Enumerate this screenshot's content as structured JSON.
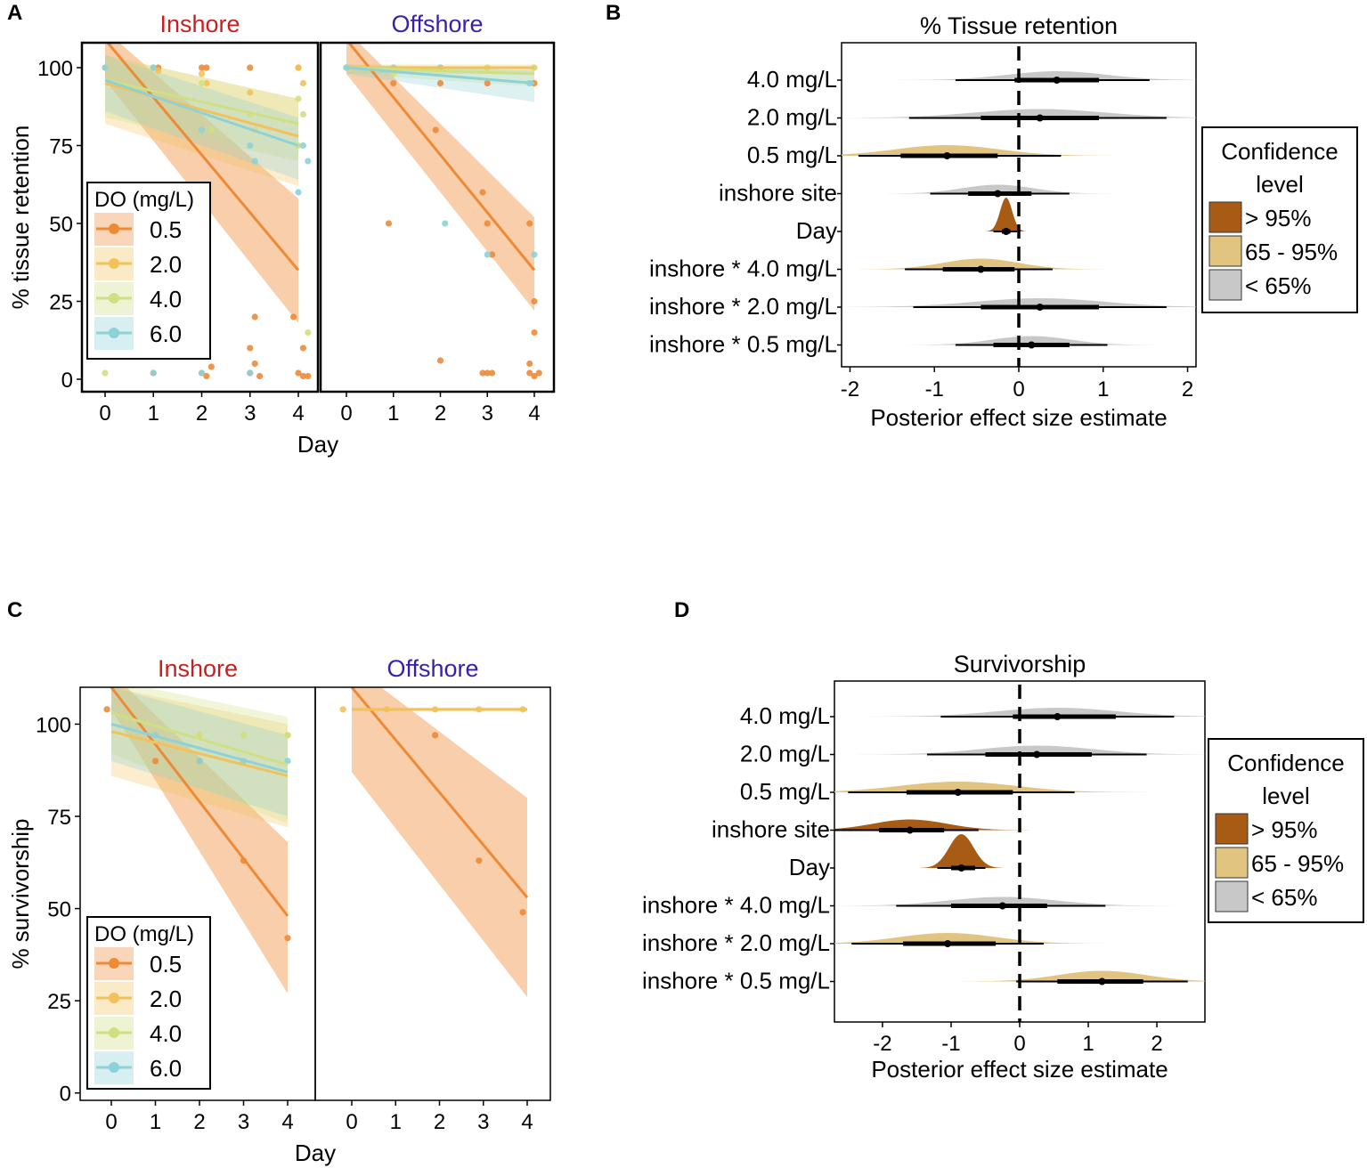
{
  "figure": {
    "panel_labels": [
      "A",
      "B",
      "C",
      "D"
    ],
    "colors": {
      "0.5": "#ee8a36",
      "2.0": "#f2c25a",
      "4.0": "#cfe082",
      "6.0": "#8ed2d8",
      "inshore": "#cc1e1e",
      "offshore": "#3a1fae",
      "conf_high": "#a85b14",
      "conf_mid": "#e2c481",
      "conf_low": "#c8c8c8"
    }
  },
  "chart_data": [
    {
      "panel": "A",
      "type": "scatter",
      "ylabel": "% tissue retention",
      "xlabel": "Day",
      "ylim": [
        -4,
        108
      ],
      "yticks": [
        0,
        25,
        50,
        75,
        100
      ],
      "xticks": [
        0,
        1,
        2,
        3,
        4
      ],
      "legend": {
        "title": "DO (mg/L)",
        "entries": [
          "0.5",
          "2.0",
          "4.0",
          "6.0"
        ],
        "placement": "bottom-left"
      },
      "facets": [
        {
          "name": "Inshore",
          "fits": [
            {
              "series": "0.5",
              "y0": 109,
              "y4": 35,
              "lo0": 96,
              "hi0": 112,
              "lo4": 18,
              "hi4": 58
            },
            {
              "series": "2.0",
              "y0": 95,
              "y4": 78,
              "lo0": 82,
              "hi0": 104,
              "lo4": 62,
              "hi4": 90
            },
            {
              "series": "4.0",
              "y0": 96,
              "y4": 82,
              "lo0": 84,
              "hi0": 104,
              "lo4": 70,
              "hi4": 90
            },
            {
              "series": "6.0",
              "y0": 96,
              "y4": 75,
              "lo0": 86,
              "hi0": 104,
              "lo4": 64,
              "hi4": 84
            }
          ],
          "points": {
            "0.5": [
              [
                1.0,
                100
              ],
              [
                1.1,
                100
              ],
              [
                2.0,
                100
              ],
              [
                2.1,
                100
              ],
              [
                3.0,
                100
              ],
              [
                4.0,
                100
              ],
              [
                2.0,
                2
              ],
              [
                2.2,
                4
              ],
              [
                2.1,
                1
              ],
              [
                3.0,
                10
              ],
              [
                3.1,
                20
              ],
              [
                3.0,
                2
              ],
              [
                3.2,
                1
              ],
              [
                3.1,
                5
              ],
              [
                4.0,
                2
              ],
              [
                4.1,
                10
              ],
              [
                4.2,
                1
              ],
              [
                3.9,
                20
              ],
              [
                4.1,
                1
              ],
              [
                1.0,
                2
              ]
            ],
            "2.0": [
              [
                0.0,
                100
              ],
              [
                1.0,
                100
              ],
              [
                2.0,
                98
              ],
              [
                2.1,
                95
              ],
              [
                3.0,
                92
              ],
              [
                4.0,
                100
              ],
              [
                4.1,
                95
              ],
              [
                1.1,
                99
              ]
            ],
            "4.0": [
              [
                0.0,
                2
              ],
              [
                2.0,
                95
              ],
              [
                3.0,
                85
              ],
              [
                4.0,
                90
              ],
              [
                4.1,
                85
              ],
              [
                3.1,
                80
              ],
              [
                2.2,
                80
              ],
              [
                4.2,
                15
              ],
              [
                4.0,
                75
              ],
              [
                2.1,
                20
              ]
            ],
            "6.0": [
              [
                0.0,
                100
              ],
              [
                1.0,
                100
              ],
              [
                2.0,
                80
              ],
              [
                3.0,
                75
              ],
              [
                3.1,
                70
              ],
              [
                4.0,
                60
              ],
              [
                4.1,
                75
              ],
              [
                4.2,
                70
              ],
              [
                1.0,
                2
              ],
              [
                3.0,
                2
              ],
              [
                2.0,
                2
              ]
            ]
          }
        },
        {
          "name": "Offshore",
          "fits": [
            {
              "series": "0.5",
              "y0": 109,
              "y4": 35,
              "lo0": 98,
              "hi0": 112,
              "lo4": 22,
              "hi4": 52
            },
            {
              "series": "2.0",
              "y0": 100,
              "y4": 100,
              "lo0": 98,
              "hi0": 101,
              "lo4": 98,
              "hi4": 101
            },
            {
              "series": "4.0",
              "y0": 100,
              "y4": 98,
              "lo0": 98,
              "hi0": 101,
              "lo4": 94,
              "hi4": 100
            },
            {
              "series": "6.0",
              "y0": 100,
              "y4": 95,
              "lo0": 98,
              "hi0": 101,
              "lo4": 89,
              "hi4": 99
            }
          ],
          "points": {
            "0.5": [
              [
                0.9,
                50
              ],
              [
                1.9,
                80
              ],
              [
                2.0,
                6
              ],
              [
                2.9,
                60
              ],
              [
                3.0,
                50
              ],
              [
                3.1,
                40
              ],
              [
                2.9,
                2
              ],
              [
                3.0,
                2
              ],
              [
                3.1,
                2
              ],
              [
                3.9,
                50
              ],
              [
                4.0,
                25
              ],
              [
                4.0,
                15
              ],
              [
                3.9,
                5
              ],
              [
                4.0,
                1
              ],
              [
                4.1,
                2
              ],
              [
                3.9,
                2
              ],
              [
                4.0,
                95
              ],
              [
                1.0,
                95
              ],
              [
                2.0,
                95
              ],
              [
                3.0,
                95
              ]
            ],
            "2.0": [
              [
                0.0,
                100
              ],
              [
                1.0,
                100
              ],
              [
                2.0,
                100
              ],
              [
                3.0,
                100
              ],
              [
                4.0,
                100
              ]
            ],
            "4.0": [
              [
                0.0,
                100
              ],
              [
                1.0,
                98
              ],
              [
                2.0,
                100
              ],
              [
                3.0,
                100
              ],
              [
                4.0,
                100
              ]
            ],
            "6.0": [
              [
                0.0,
                100
              ],
              [
                1.0,
                100
              ],
              [
                2.0,
                100
              ],
              [
                2.1,
                50
              ],
              [
                3.0,
                40
              ],
              [
                4.0,
                40
              ],
              [
                3.9,
                95
              ]
            ]
          }
        }
      ]
    },
    {
      "panel": "B",
      "type": "forest",
      "title": "% Tissue retention",
      "xlabel": "Posterior effect size estimate",
      "xlim": [
        -2.1,
        2.1
      ],
      "xticks": [
        -2,
        -1,
        0,
        1,
        2
      ],
      "legend": {
        "title": "Confidence level",
        "entries": [
          "> 95%",
          "65 - 95%",
          "< 65%"
        ],
        "placement": "right"
      },
      "rows": [
        {
          "label": "4.0 mg/L",
          "mean": 0.45,
          "lo50": -0.05,
          "hi50": 0.95,
          "lo95": -0.75,
          "hi95": 1.55,
          "conf": "< 65%"
        },
        {
          "label": "2.0 mg/L",
          "mean": 0.25,
          "lo50": -0.45,
          "hi50": 0.95,
          "lo95": -1.3,
          "hi95": 1.75,
          "conf": "< 65%"
        },
        {
          "label": "0.5 mg/L",
          "mean": -0.85,
          "lo50": -1.4,
          "hi50": -0.25,
          "lo95": -1.9,
          "hi95": 0.5,
          "conf": "65 - 95%"
        },
        {
          "label": "inshore site",
          "mean": -0.25,
          "lo50": -0.6,
          "hi50": 0.15,
          "lo95": -1.05,
          "hi95": 0.6,
          "conf": "< 65%"
        },
        {
          "label": "Day",
          "mean": -0.15,
          "lo50": -0.2,
          "hi50": -0.1,
          "lo95": -0.3,
          "hi95": -0.02,
          "conf": "> 95%"
        },
        {
          "label": "inshore * 4.0 mg/L",
          "mean": -0.45,
          "lo50": -0.9,
          "hi50": -0.05,
          "lo95": -1.35,
          "hi95": 0.4,
          "conf": "65 - 95%"
        },
        {
          "label": "inshore * 2.0 mg/L",
          "mean": 0.25,
          "lo50": -0.45,
          "hi50": 0.95,
          "lo95": -1.25,
          "hi95": 1.75,
          "conf": "< 65%"
        },
        {
          "label": "inshore * 0.5 mg/L",
          "mean": 0.15,
          "lo50": -0.3,
          "hi50": 0.6,
          "lo95": -0.75,
          "hi95": 1.05,
          "conf": "< 65%"
        }
      ]
    },
    {
      "panel": "C",
      "type": "scatter",
      "ylabel": "% survivorship",
      "xlabel": "Day",
      "ylim": [
        -2,
        110
      ],
      "yticks": [
        0,
        25,
        50,
        75,
        100
      ],
      "xticks": [
        0,
        1,
        2,
        3,
        4
      ],
      "legend": {
        "title": "DO (mg/L)",
        "entries": [
          "0.5",
          "2.0",
          "4.0",
          "6.0"
        ],
        "placement": "bottom-left"
      },
      "facets": [
        {
          "name": "Inshore",
          "fits": [
            {
              "series": "0.5",
              "y0": 110,
              "y4": 48,
              "lo0": 104,
              "hi0": 114,
              "lo4": 27,
              "hi4": 68
            },
            {
              "series": "2.0",
              "y0": 98,
              "y4": 86,
              "lo0": 86,
              "hi0": 110,
              "lo4": 72,
              "hi4": 100
            },
            {
              "series": "4.0",
              "y0": 103,
              "y4": 89,
              "lo0": 92,
              "hi0": 112,
              "lo4": 73,
              "hi4": 102
            },
            {
              "series": "6.0",
              "y0": 100,
              "y4": 87,
              "lo0": 90,
              "hi0": 110,
              "lo4": 75,
              "hi4": 97
            }
          ],
          "points": {
            "0.5": [
              [
                -0.1,
                104
              ],
              [
                1.0,
                90
              ],
              [
                2.0,
                90
              ],
              [
                3.0,
                63
              ],
              [
                4.0,
                42
              ]
            ],
            "2.0": [
              [
                1.0,
                97
              ],
              [
                2.0,
                97
              ],
              [
                3.0,
                90
              ],
              [
                4.0,
                97
              ]
            ],
            "4.0": [
              [
                1.0,
                97
              ],
              [
                2.0,
                97
              ],
              [
                3.0,
                97
              ],
              [
                4.0,
                97
              ]
            ],
            "6.0": [
              [
                1.0,
                97
              ],
              [
                2.0,
                90
              ],
              [
                3.0,
                90
              ],
              [
                4.0,
                90
              ]
            ]
          }
        },
        {
          "name": "Offshore",
          "fits": [
            {
              "series": "0.5",
              "y0": 110,
              "y4": 53,
              "lo0": 87,
              "hi0": 116,
              "lo4": 26,
              "hi4": 80
            },
            {
              "series": "2.0",
              "y0": 104,
              "y4": 104,
              "lo0": 103.5,
              "hi0": 104.5,
              "lo4": 103.5,
              "hi4": 104.5
            }
          ],
          "points": {
            "0.5": [
              [
                1.9,
                97
              ],
              [
                2.9,
                63
              ],
              [
                3.9,
                49
              ]
            ],
            "2.0": [
              [
                -0.2,
                104
              ],
              [
                0.8,
                104
              ],
              [
                1.9,
                104
              ],
              [
                2.9,
                104
              ],
              [
                3.9,
                104
              ]
            ]
          }
        }
      ]
    },
    {
      "panel": "D",
      "type": "forest",
      "title": "Survivorship",
      "xlabel": "Posterior effect size estimate",
      "xlim": [
        -2.7,
        2.7
      ],
      "xticks": [
        -2,
        -1,
        0,
        1,
        2
      ],
      "legend": {
        "title": "Confidence level",
        "entries": [
          "> 95%",
          "65 - 95%",
          "< 65%"
        ],
        "placement": "right"
      },
      "rows": [
        {
          "label": "4.0 mg/L",
          "mean": 0.55,
          "lo50": -0.1,
          "hi50": 1.4,
          "lo95": -1.15,
          "hi95": 2.25,
          "conf": "< 65%"
        },
        {
          "label": "2.0 mg/L",
          "mean": 0.25,
          "lo50": -0.5,
          "hi50": 1.05,
          "lo95": -1.35,
          "hi95": 1.85,
          "conf": "< 65%"
        },
        {
          "label": "0.5 mg/L",
          "mean": -0.9,
          "lo50": -1.65,
          "hi50": -0.1,
          "lo95": -2.5,
          "hi95": 0.8,
          "conf": "65 - 95%"
        },
        {
          "label": "inshore site",
          "mean": -1.6,
          "lo50": -2.05,
          "hi50": -1.1,
          "lo95": -2.7,
          "hi95": -0.6,
          "conf": "> 95%"
        },
        {
          "label": "Day",
          "mean": -0.85,
          "lo50": -1.0,
          "hi50": -0.65,
          "lo95": -1.2,
          "hi95": -0.5,
          "conf": "> 95%"
        },
        {
          "label": "inshore * 4.0 mg/L",
          "mean": -0.25,
          "lo50": -1.0,
          "hi50": 0.4,
          "lo95": -1.8,
          "hi95": 1.25,
          "conf": "< 65%"
        },
        {
          "label": "inshore * 2.0 mg/L",
          "mean": -1.05,
          "lo50": -1.7,
          "hi50": -0.35,
          "lo95": -2.45,
          "hi95": 0.35,
          "conf": "65 - 95%"
        },
        {
          "label": "inshore * 0.5 mg/L",
          "mean": 1.2,
          "lo50": 0.55,
          "hi50": 1.8,
          "lo95": -0.05,
          "hi95": 2.45,
          "conf": "65 - 95%"
        }
      ]
    }
  ]
}
